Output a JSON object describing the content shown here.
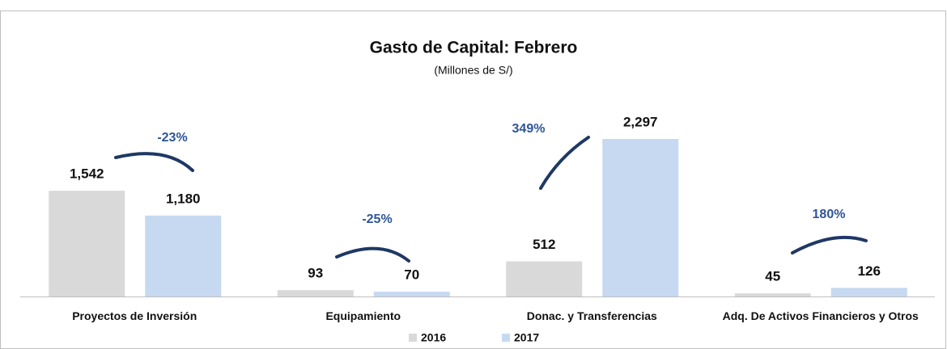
{
  "chart_data": {
    "type": "bar",
    "title": "Gasto de Capital: Febrero",
    "subtitle": "(Millones de S/)",
    "categories": [
      "Proyectos de Inversión",
      "Equipamiento",
      "Donac. y Transferencias",
      "Adq. De Activos Financieros y Otros"
    ],
    "series": [
      {
        "name": "2016",
        "color": "#d9d9d9",
        "values": [
          1542,
          93,
          512,
          45
        ],
        "value_labels": [
          "1,542",
          "93",
          "512",
          "45"
        ]
      },
      {
        "name": "2017",
        "color": "#c6d9f1",
        "values": [
          1180,
          70,
          2297,
          126
        ],
        "value_labels": [
          "1,180",
          "70",
          "2,297",
          "126"
        ]
      }
    ],
    "annotations": [
      "-23%",
      "-25%",
      "349%",
      "180%"
    ]
  }
}
